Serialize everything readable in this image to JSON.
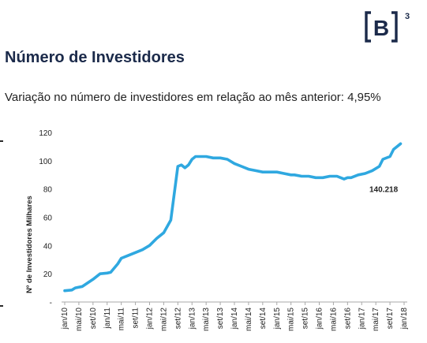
{
  "header": {
    "title": "Número de Investidores",
    "subtitle": "Variação no número de investidores em relação ao mês anterior: 4,95%"
  },
  "logo": {
    "text": "B",
    "superscript": "3",
    "color": "#1b2a4a"
  },
  "chart_data": {
    "type": "line",
    "title": "",
    "xlabel": "",
    "ylabel": "Nº de Investidores   Milhares",
    "ylim": [
      0,
      120
    ],
    "y_ticks": [
      0,
      20,
      40,
      60,
      80,
      100,
      120
    ],
    "y_tick_labels": [
      "-",
      "20",
      "40",
      "60",
      "80",
      "100",
      "120"
    ],
    "x_tick_labels": [
      "jan/10",
      "mai/10",
      "set/10",
      "jan/11",
      "mai/11",
      "set/11",
      "jan/12",
      "mai/12",
      "set/12",
      "jan/13",
      "mai/13",
      "set/13",
      "jan/14",
      "mai/14",
      "set/14",
      "jan/15",
      "mai/15",
      "set/15",
      "jan/16",
      "mai/16",
      "set/16",
      "jan/17",
      "mai/17",
      "set/17",
      "jan/18"
    ],
    "grid": false,
    "line_color": "#2fa8e0",
    "series": [
      {
        "x": [
          "jan/10",
          "mar/10",
          "abr/10",
          "jun/10",
          "set/10",
          "nov/10",
          "jan/11",
          "fev/11",
          "mar/11",
          "abr/11",
          "mai/11",
          "jul/11",
          "set/11",
          "nov/11",
          "jan/12",
          "mar/12",
          "abr/12",
          "mai/12",
          "jul/12",
          "set/12",
          "out/12",
          "nov/12",
          "dez/12",
          "jan/13",
          "fev/13",
          "mai/13",
          "jul/13",
          "set/13",
          "nov/13",
          "jan/14",
          "mar/14",
          "mai/14",
          "jul/14",
          "set/14",
          "nov/14",
          "jan/15",
          "mar/15",
          "mai/15",
          "jun/15",
          "ago/15",
          "out/15",
          "dez/15",
          "fev/16",
          "abr/16",
          "jun/16",
          "ago/16",
          "set/16",
          "out/16",
          "dez/16",
          "fev/17",
          "abr/17",
          "jun/17",
          "jul/17",
          "set/17",
          "out/17",
          "dez/17"
        ],
        "values": [
          8,
          8.5,
          10,
          11,
          16,
          20,
          20.5,
          21,
          24,
          27,
          31,
          33,
          35,
          37,
          40,
          45,
          47,
          49,
          58,
          96,
          97,
          95,
          97,
          101,
          103,
          103,
          102,
          102,
          101,
          98,
          96,
          94,
          93,
          92,
          92,
          92,
          91,
          90,
          90,
          89,
          89,
          88,
          88,
          89,
          89,
          87,
          88,
          88,
          90,
          91,
          93,
          96,
          101,
          103,
          108,
          112
        ]
      }
    ],
    "annotations": [
      {
        "text": "140.218"
      }
    ]
  }
}
